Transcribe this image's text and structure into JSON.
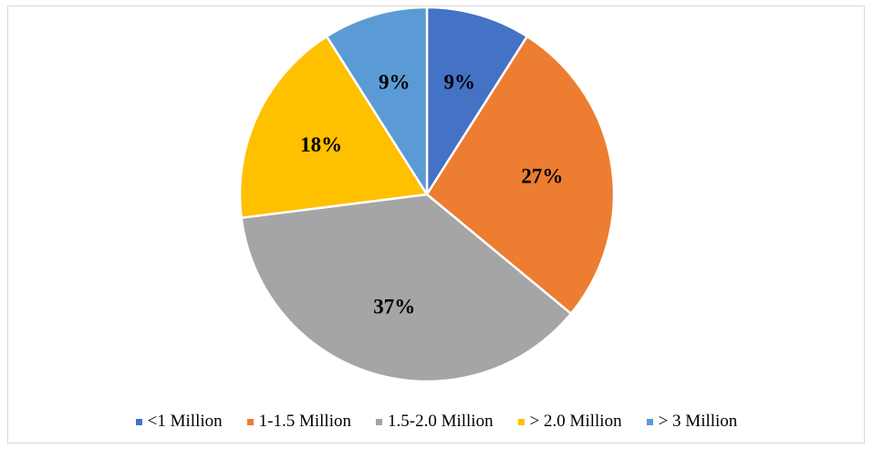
{
  "chart_data": {
    "type": "pie",
    "title": "",
    "start_angle_deg": 0,
    "direction": "clockwise",
    "slices": [
      {
        "label": "<1 Million",
        "value": 9,
        "value_label": "9%",
        "color": "#4472c4"
      },
      {
        "label": "1-1.5 Million",
        "value": 27,
        "value_label": "27%",
        "color": "#ed7d31"
      },
      {
        "label": "1.5-2.0 Million",
        "value": 37,
        "value_label": "37%",
        "color": "#a5a5a5"
      },
      {
        "label": "> 2.0 Million",
        "value": 18,
        "value_label": "18%",
        "color": "#ffc000"
      },
      {
        "label": "> 3 Million",
        "value": 9,
        "value_label": "9%",
        "color": "#5b9bd5"
      }
    ],
    "legend_position": "bottom",
    "slice_border_color": "#ffffff"
  }
}
